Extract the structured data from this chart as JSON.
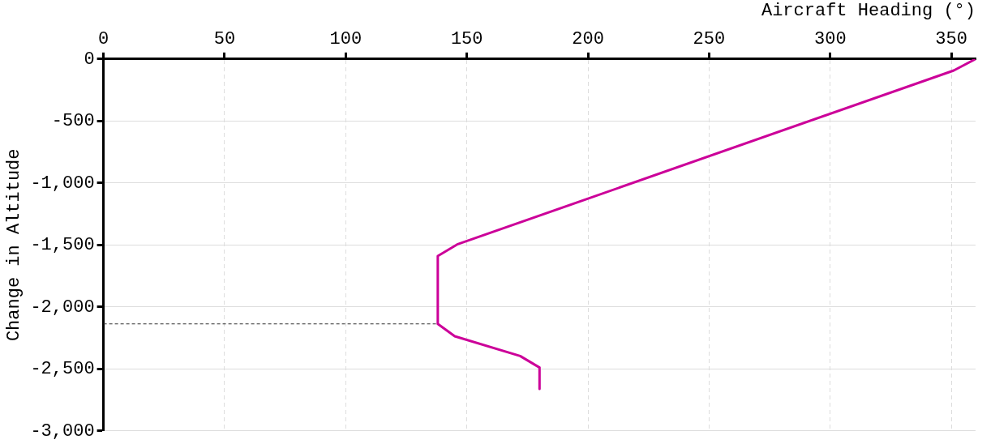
{
  "chart_data": {
    "type": "line",
    "xlabel": "Aircraft Heading (°)",
    "ylabel": "Change in Altitude",
    "xlim": [
      0,
      360
    ],
    "xticks": [
      0,
      50,
      100,
      150,
      200,
      250,
      300,
      350
    ],
    "ylim": [
      -3000,
      0
    ],
    "yticks": [
      {
        "value": -3000,
        "label": "-3,000"
      },
      {
        "value": -2500,
        "label": "-2,500"
      },
      {
        "value": -2000,
        "label": "-2,000"
      },
      {
        "value": -1500,
        "label": "-1,500"
      },
      {
        "value": -1000,
        "label": "-1,000"
      },
      -500,
      0
    ],
    "grid": true,
    "legend": false,
    "marker": "none",
    "series": [
      {
        "color": "#cc0099",
        "line_style": "solid",
        "x": [
          360,
          351,
          146,
          138,
          138,
          145,
          172,
          180,
          180
        ],
        "values": [
          0,
          -93,
          -1496,
          -1590,
          -2137,
          -2237,
          -2396,
          -2489,
          -2662
        ]
      },
      {
        "color": "#333333",
        "line_style": "dashed",
        "x": [
          0,
          138
        ],
        "values": [
          -2137,
          -2137
        ]
      }
    ]
  }
}
